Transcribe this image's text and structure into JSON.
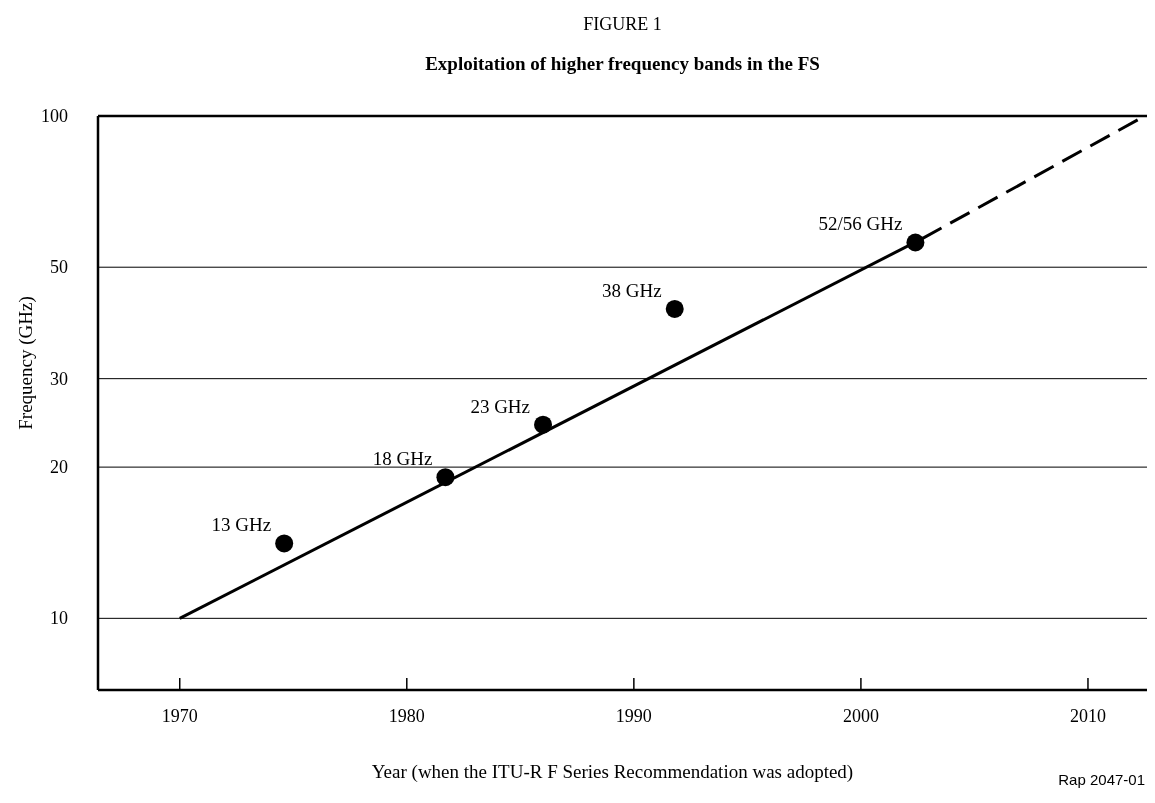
{
  "chart_data": {
    "type": "scatter",
    "title": "FIGURE 1",
    "subtitle": "Exploitation of higher frequency bands in the FS",
    "xlabel": "Year (when the ITU-R F Series Recommendation was adopted)",
    "ylabel": "Frequency (GHz)",
    "xlim": [
      1966.4,
      2012.6
    ],
    "xticks": [
      1970,
      1980,
      1990,
      2000,
      2010
    ],
    "ylim": [
      7.2,
      100
    ],
    "yticks": [
      10,
      20,
      30,
      50,
      100
    ],
    "log": "y",
    "grid": "y",
    "series": [
      {
        "color": "#000000",
        "marker": "circle",
        "x": [
          1974.6,
          1981.7,
          1986.0,
          1991.8,
          2002.4
        ],
        "values": [
          14.1,
          19.1,
          24.3,
          41.3,
          56.0
        ]
      },
      {
        "type": "line",
        "color": "#000000",
        "line_style": "solid",
        "x": [
          1970,
          2002.7
        ],
        "values": [
          10,
          57
        ]
      },
      {
        "type": "line",
        "color": "#000000",
        "line_style": "dashed",
        "x": [
          2002.7,
          2012.5
        ],
        "values": [
          57,
          100
        ]
      }
    ],
    "annotations": [
      {
        "text": "13 GHz",
        "x": 1974.6,
        "y": 14.1
      },
      {
        "text": "18 GHz",
        "x": 1981.7,
        "y": 19.1
      },
      {
        "text": "23 GHz",
        "x": 1986.0,
        "y": 24.3
      },
      {
        "text": "38 GHz",
        "x": 1991.8,
        "y": 41.3
      },
      {
        "text": "52/56 GHz",
        "x": 2002.4,
        "y": 56.0
      },
      "Rap 2047-01"
    ]
  }
}
